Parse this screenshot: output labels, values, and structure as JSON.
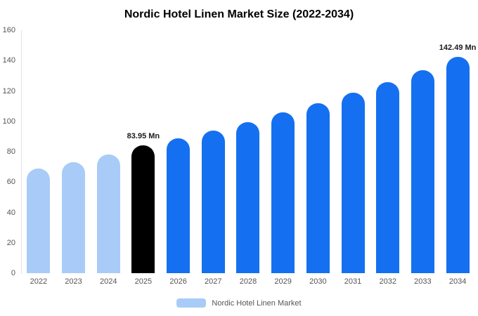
{
  "title": "Nordic Hotel Linen Market Size (2022-2034)",
  "legend": {
    "label": "Nordic Hotel Linen Market",
    "swatch_color": "#a9cbf7"
  },
  "colors": {
    "historical": "#a9cbf7",
    "base_year": "#000000",
    "forecast": "#1470f0"
  },
  "chart_data": {
    "type": "bar",
    "title": "Nordic Hotel Linen Market Size (2022-2034)",
    "categories": [
      "2022",
      "2023",
      "2024",
      "2025",
      "2026",
      "2027",
      "2028",
      "2029",
      "2030",
      "2031",
      "2032",
      "2033",
      "2034"
    ],
    "values": [
      69,
      73,
      78,
      83.95,
      89,
      94,
      99.5,
      106,
      112,
      119,
      126,
      133.5,
      142.49
    ],
    "unit": "Mn",
    "bar_colors": [
      "#a9cbf7",
      "#a9cbf7",
      "#a9cbf7",
      "#000000",
      "#1470f0",
      "#1470f0",
      "#1470f0",
      "#1470f0",
      "#1470f0",
      "#1470f0",
      "#1470f0",
      "#1470f0",
      "#1470f0"
    ],
    "annotations": [
      {
        "index": 3,
        "text": "83.95 Mn"
      },
      {
        "index": 12,
        "text": "142.49 Mn"
      }
    ],
    "xlabel": "",
    "ylabel": "",
    "ylim": [
      0,
      160
    ],
    "yticks": [
      0,
      20,
      40,
      60,
      80,
      100,
      120,
      140,
      160
    ],
    "grid": false,
    "legend_position": "bottom"
  }
}
